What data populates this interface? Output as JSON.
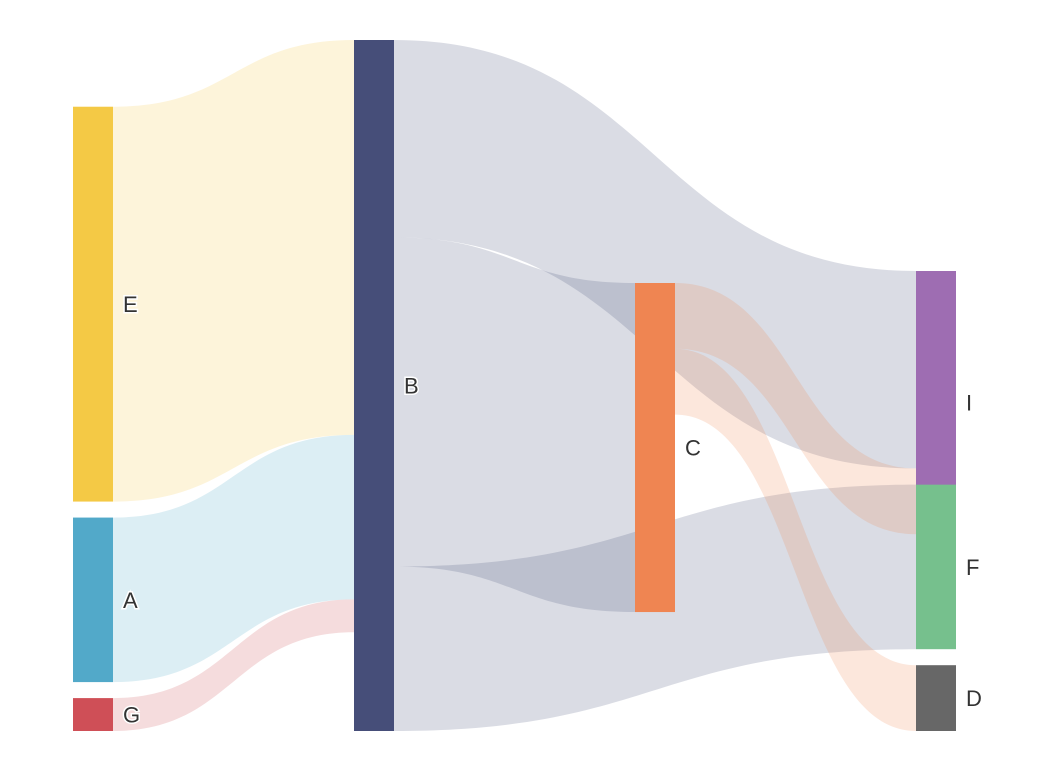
{
  "chart_data": {
    "type": "sankey",
    "title": "",
    "nodes": [
      {
        "id": "E",
        "label": "E",
        "color": "#f4c945",
        "column": 0
      },
      {
        "id": "A",
        "label": "A",
        "color": "#52a9c9",
        "column": 0
      },
      {
        "id": "G",
        "label": "G",
        "color": "#cf4f57",
        "column": 0
      },
      {
        "id": "B",
        "label": "B",
        "color": "#464e79",
        "column": 1
      },
      {
        "id": "C",
        "label": "C",
        "color": "#ef8552",
        "column": 2
      },
      {
        "id": "I",
        "label": "I",
        "color": "#9e6db2",
        "column": 3
      },
      {
        "id": "F",
        "label": "F",
        "color": "#76c08d",
        "column": 3
      },
      {
        "id": "D",
        "label": "D",
        "color": "#676767",
        "column": 3
      }
    ],
    "links": [
      {
        "source": "E",
        "target": "B",
        "value": 60
      },
      {
        "source": "A",
        "target": "B",
        "value": 25
      },
      {
        "source": "G",
        "target": "B",
        "value": 5
      },
      {
        "source": "B",
        "target": "I",
        "value": 30
      },
      {
        "source": "B",
        "target": "C",
        "value": 50
      },
      {
        "source": "B",
        "target": "F",
        "value": 25
      },
      {
        "source": "C",
        "target": "I",
        "value": 10
      },
      {
        "source": "C",
        "target": "D",
        "value": 10
      }
    ]
  }
}
